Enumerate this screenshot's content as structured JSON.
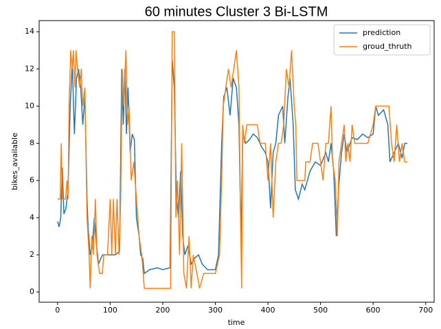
{
  "chart_data": {
    "type": "line",
    "title": "60 minutes Cluster 3 Bi-LSTM",
    "x_label": "time",
    "y_label": "bikes_available",
    "xlim": [
      -35,
      716
    ],
    "ylim": [
      -0.55,
      14.6
    ],
    "xticks": [
      0,
      100,
      200,
      300,
      400,
      500,
      600,
      700
    ],
    "yticks": [
      0,
      2,
      4,
      6,
      8,
      10,
      12,
      14
    ],
    "legend": "upper right",
    "grid": false,
    "series": [
      {
        "name": "prediction",
        "color": "#1f77b4",
        "x": [
          0,
          3,
          6,
          9,
          12,
          16,
          20,
          24,
          28,
          32,
          36,
          40,
          44,
          48,
          52,
          56,
          58,
          62,
          66,
          70,
          74,
          78,
          82,
          86,
          95,
          110,
          118,
          122,
          125,
          128,
          131,
          134,
          138,
          142,
          146,
          150,
          155,
          158,
          162,
          165,
          175,
          190,
          200,
          214,
          218,
          222,
          226,
          230,
          234,
          238,
          242,
          248,
          254,
          260,
          268,
          275,
          285,
          300,
          306,
          312,
          316,
          322,
          328,
          334,
          340,
          345,
          349,
          352,
          358,
          365,
          372,
          380,
          388,
          395,
          400,
          405,
          410,
          415,
          420,
          428,
          432,
          438,
          442,
          448,
          452,
          458,
          465,
          470,
          480,
          490,
          500,
          510,
          515,
          520,
          525,
          530,
          534,
          540,
          545,
          550,
          560,
          570,
          580,
          590,
          600,
          605,
          610,
          620,
          628,
          632,
          640,
          648,
          655,
          660,
          665
        ],
        "values": [
          3.8,
          3.5,
          4,
          6.7,
          4.2,
          4.5,
          5.5,
          10,
          12.3,
          8.5,
          11.5,
          12,
          11,
          9,
          10.5,
          5,
          3.5,
          2,
          2.5,
          4,
          2.5,
          1.5,
          1.8,
          2,
          2,
          2,
          2.2,
          12,
          9,
          12,
          8.5,
          11,
          7.5,
          8.5,
          8.2,
          4,
          3,
          2,
          1.8,
          1,
          1.2,
          1.3,
          1.2,
          1.3,
          12.5,
          11,
          5,
          4,
          6.5,
          3,
          2,
          2.5,
          1.5,
          1.8,
          2,
          1.5,
          1.2,
          1.2,
          2,
          8,
          10.5,
          11,
          9.5,
          11.5,
          11,
          9,
          2.5,
          8.5,
          8,
          8.2,
          8.5,
          8.3,
          7.8,
          7.5,
          7,
          4.5,
          7.5,
          8,
          9.5,
          10,
          8,
          10.5,
          11.5,
          9,
          5.5,
          5,
          5.8,
          5.5,
          6.5,
          7,
          6.8,
          7.5,
          7,
          8,
          6.5,
          3,
          5.5,
          7.5,
          8.5,
          7.5,
          8.3,
          8.2,
          8.5,
          8.3,
          8.5,
          10,
          9.5,
          9.8,
          9,
          7,
          7.5,
          8,
          7.2,
          8,
          8
        ]
      },
      {
        "name": "groud_thruth",
        "color": "#ff7f0e",
        "x": [
          0,
          5,
          7,
          9,
          15,
          18,
          20,
          22,
          25,
          28,
          30,
          33,
          35,
          38,
          42,
          45,
          48,
          52,
          56,
          58,
          60,
          62,
          65,
          68,
          72,
          75,
          80,
          85,
          88,
          95,
          100,
          103,
          106,
          110,
          113,
          117,
          120,
          123,
          126,
          130,
          133,
          136,
          140,
          145,
          150,
          155,
          160,
          165,
          215,
          218,
          222,
          225,
          228,
          232,
          236,
          240,
          245,
          250,
          254,
          258,
          265,
          270,
          278,
          285,
          300,
          308,
          312,
          315,
          320,
          325,
          330,
          335,
          340,
          345,
          348,
          350,
          352,
          355,
          360,
          380,
          385,
          395,
          400,
          405,
          410,
          415,
          420,
          425,
          430,
          435,
          440,
          445,
          450,
          453,
          455,
          470,
          472,
          480,
          485,
          495,
          500,
          505,
          510,
          515,
          520,
          523,
          528,
          532,
          535,
          540,
          545,
          548,
          552,
          556,
          560,
          565,
          575,
          580,
          590,
          600,
          605,
          630,
          635,
          640,
          645,
          650,
          655,
          660,
          665
        ],
        "values": [
          5,
          5,
          8,
          5,
          5,
          6,
          5,
          10,
          13,
          12,
          13,
          11,
          13,
          12,
          11,
          12,
          10,
          11,
          4,
          3,
          2,
          0.2,
          3,
          2,
          5,
          2,
          1,
          1,
          2,
          2,
          5,
          2,
          5,
          2,
          5,
          2,
          5,
          12,
          10,
          13,
          9,
          10,
          6,
          7,
          5,
          3,
          2,
          0.2,
          0.2,
          14,
          14,
          4,
          6,
          2,
          8,
          1,
          0.2,
          3,
          0.2,
          2,
          1,
          0.2,
          1,
          1,
          1,
          2,
          6,
          10,
          11,
          12,
          11,
          12,
          13,
          11,
          4,
          0.2,
          9,
          8,
          9,
          9,
          8,
          8,
          6,
          8,
          4,
          7,
          8,
          8,
          9,
          12,
          11,
          13,
          10,
          9,
          6,
          6,
          7,
          7,
          8,
          8,
          7,
          6,
          8,
          8,
          10,
          7,
          6,
          3,
          7,
          8,
          9,
          7,
          8,
          7,
          9,
          8,
          8,
          8,
          8,
          9,
          10,
          10,
          8,
          7,
          9,
          7,
          8,
          7,
          7
        ]
      }
    ]
  }
}
